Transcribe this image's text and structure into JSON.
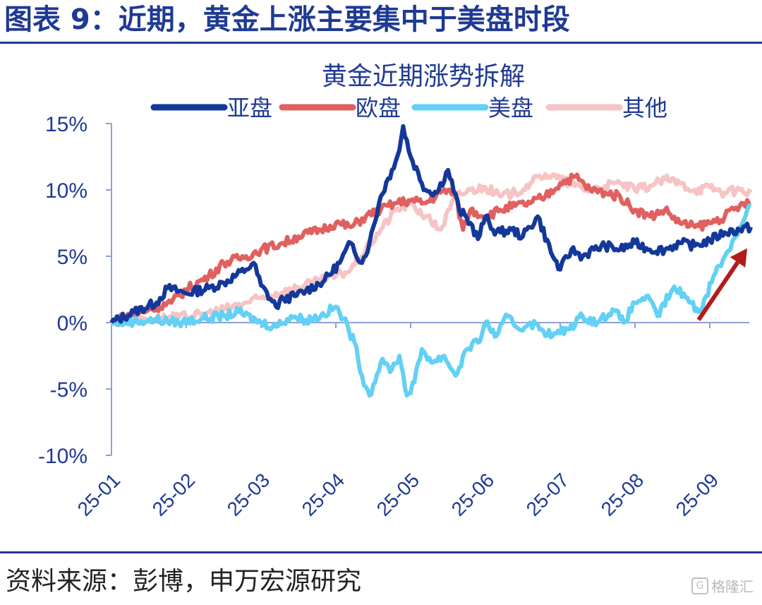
{
  "figure": {
    "title": "图表 9：近期，黄金上涨主要集中于美盘时段",
    "source": "资料来源：彭博，申万宏源研究",
    "watermark": "格隆汇"
  },
  "colors": {
    "brand_blue": "#1f3a93",
    "asia": "#14389a",
    "europe": "#e06060",
    "us": "#63d0f5",
    "other": "#f6c4c4",
    "arrow": "#b31b1b",
    "axis": "#8ea0d8",
    "tick_text": "#1f3a93"
  },
  "chart_data": {
    "type": "line",
    "title": "黄金近期涨势拆解",
    "xlabel": "",
    "ylabel": "",
    "x_tick_labels": [
      "25-01",
      "25-02",
      "25-03",
      "25-04",
      "25-05",
      "25-06",
      "25-07",
      "25-08",
      "25-09"
    ],
    "y_tick_labels": [
      "15%",
      "10%",
      "5%",
      "0%",
      "-5%",
      "-10%"
    ],
    "y_ticks": [
      15,
      10,
      5,
      0,
      -5,
      -10
    ],
    "ylim": [
      -10,
      15
    ],
    "x_range_months": [
      0,
      8.6
    ],
    "grid": false,
    "legend": "top",
    "annotations": [
      {
        "type": "arrow",
        "direction": "up-right",
        "x_from": 7.85,
        "y_from": 0.2,
        "x_to": 8.5,
        "y_to": 5.6
      }
    ],
    "series": [
      {
        "name": "亚盘",
        "color": "#14389a",
        "x": [
          0,
          0.3,
          0.6,
          0.75,
          1.0,
          1.3,
          1.5,
          1.8,
          1.9,
          2.0,
          2.2,
          2.3,
          2.45,
          2.6,
          2.85,
          3.05,
          3.2,
          3.35,
          3.45,
          3.6,
          3.75,
          3.85,
          3.9,
          4.0,
          4.2,
          4.35,
          4.5,
          4.65,
          4.8,
          4.9,
          5.0,
          5.1,
          5.2,
          5.35,
          5.5,
          5.7,
          5.9,
          6.0,
          6.15,
          6.3,
          6.45,
          6.6,
          6.8,
          7.0,
          7.2,
          7.4,
          7.6,
          7.8,
          8.0,
          8.2,
          8.4,
          8.55
        ],
        "y": [
          0,
          0.8,
          1.5,
          2.6,
          2.2,
          2.6,
          3.0,
          4.0,
          4.5,
          2.8,
          1.2,
          1.8,
          2.0,
          2.4,
          3.2,
          4.5,
          6.0,
          4.5,
          6.0,
          9.5,
          11.5,
          13.0,
          14.8,
          12.5,
          10.0,
          9.8,
          11.5,
          8.5,
          7.5,
          6.3,
          8.0,
          7.0,
          6.8,
          7.0,
          6.5,
          8.0,
          5.0,
          4.0,
          5.5,
          5.0,
          5.5,
          5.8,
          5.5,
          6.0,
          5.5,
          5.5,
          6.0,
          5.8,
          6.2,
          6.8,
          7.0,
          7.2
        ]
      },
      {
        "name": "欧盘",
        "color": "#e06060",
        "x": [
          0,
          0.2,
          0.5,
          0.8,
          1.0,
          1.3,
          1.5,
          1.8,
          2.0,
          2.3,
          2.5,
          2.8,
          3.0,
          3.2,
          3.4,
          3.6,
          3.8,
          4.0,
          4.2,
          4.4,
          4.5,
          4.6,
          4.7,
          4.8,
          5.0,
          5.2,
          5.4,
          5.6,
          5.8,
          6.0,
          6.2,
          6.4,
          6.6,
          6.8,
          7.0,
          7.2,
          7.4,
          7.6,
          7.8,
          8.0,
          8.2,
          8.4,
          8.55
        ],
        "y": [
          0,
          0.5,
          1.0,
          1.5,
          2.5,
          3.5,
          4.5,
          5.0,
          5.5,
          6.0,
          6.5,
          7.0,
          7.5,
          7.2,
          8.0,
          8.5,
          9.0,
          9.2,
          9.0,
          9.8,
          10.0,
          9.5,
          7.0,
          8.5,
          8.0,
          8.5,
          8.8,
          9.0,
          9.5,
          10.5,
          11.0,
          10.0,
          9.8,
          9.5,
          8.5,
          8.0,
          8.5,
          7.5,
          7.2,
          7.5,
          8.0,
          8.8,
          9.0
        ]
      },
      {
        "name": "美盘",
        "color": "#63d0f5",
        "x": [
          0,
          0.3,
          0.6,
          0.9,
          1.2,
          1.5,
          1.7,
          2.0,
          2.2,
          2.4,
          2.6,
          2.8,
          3.0,
          3.1,
          3.25,
          3.35,
          3.45,
          3.6,
          3.75,
          3.85,
          3.95,
          4.05,
          4.15,
          4.3,
          4.45,
          4.6,
          4.75,
          4.9,
          5.0,
          5.15,
          5.3,
          5.45,
          5.6,
          5.75,
          5.9,
          6.1,
          6.3,
          6.5,
          6.7,
          6.85,
          7.0,
          7.15,
          7.3,
          7.5,
          7.65,
          7.75,
          7.85,
          7.95,
          8.05,
          8.2,
          8.35,
          8.5,
          8.55
        ],
        "y": [
          0,
          0.1,
          0.2,
          0.0,
          0.3,
          0.5,
          0.8,
          0.0,
          -0.3,
          0.5,
          0.2,
          0.5,
          1.2,
          0.3,
          -1.5,
          -4.0,
          -5.5,
          -3.0,
          -3.5,
          -2.5,
          -5.5,
          -4.5,
          -2.0,
          -3.0,
          -2.5,
          -4.0,
          -2.0,
          -1.5,
          0.0,
          -1.0,
          0.5,
          -0.5,
          0.0,
          -0.5,
          -1.0,
          -0.5,
          0.5,
          0.0,
          1.0,
          0.0,
          1.5,
          2.0,
          0.5,
          2.5,
          2.2,
          1.5,
          0.8,
          2.0,
          3.5,
          5.0,
          6.5,
          8.5,
          8.8
        ]
      },
      {
        "name": "其他",
        "color": "#f6c4c4",
        "x": [
          0,
          0.3,
          0.6,
          0.9,
          1.2,
          1.5,
          1.8,
          2.1,
          2.4,
          2.7,
          3.0,
          3.2,
          3.4,
          3.6,
          3.8,
          4.0,
          4.2,
          4.4,
          4.6,
          4.8,
          5.0,
          5.2,
          5.4,
          5.6,
          5.8,
          6.0,
          6.2,
          6.4,
          6.6,
          6.8,
          7.0,
          7.2,
          7.4,
          7.6,
          7.8,
          8.0,
          8.2,
          8.4,
          8.55
        ],
        "y": [
          0,
          0.2,
          0.3,
          0.4,
          0.6,
          1.0,
          1.5,
          2.0,
          2.5,
          3.0,
          3.5,
          4.0,
          5.5,
          7.0,
          8.5,
          9.0,
          8.0,
          7.0,
          9.5,
          10.0,
          10.2,
          9.5,
          9.8,
          10.5,
          11.2,
          10.8,
          10.3,
          10.0,
          10.3,
          10.5,
          10.0,
          10.3,
          10.8,
          10.5,
          10.0,
          10.2,
          9.8,
          10.0,
          9.8
        ]
      }
    ]
  }
}
